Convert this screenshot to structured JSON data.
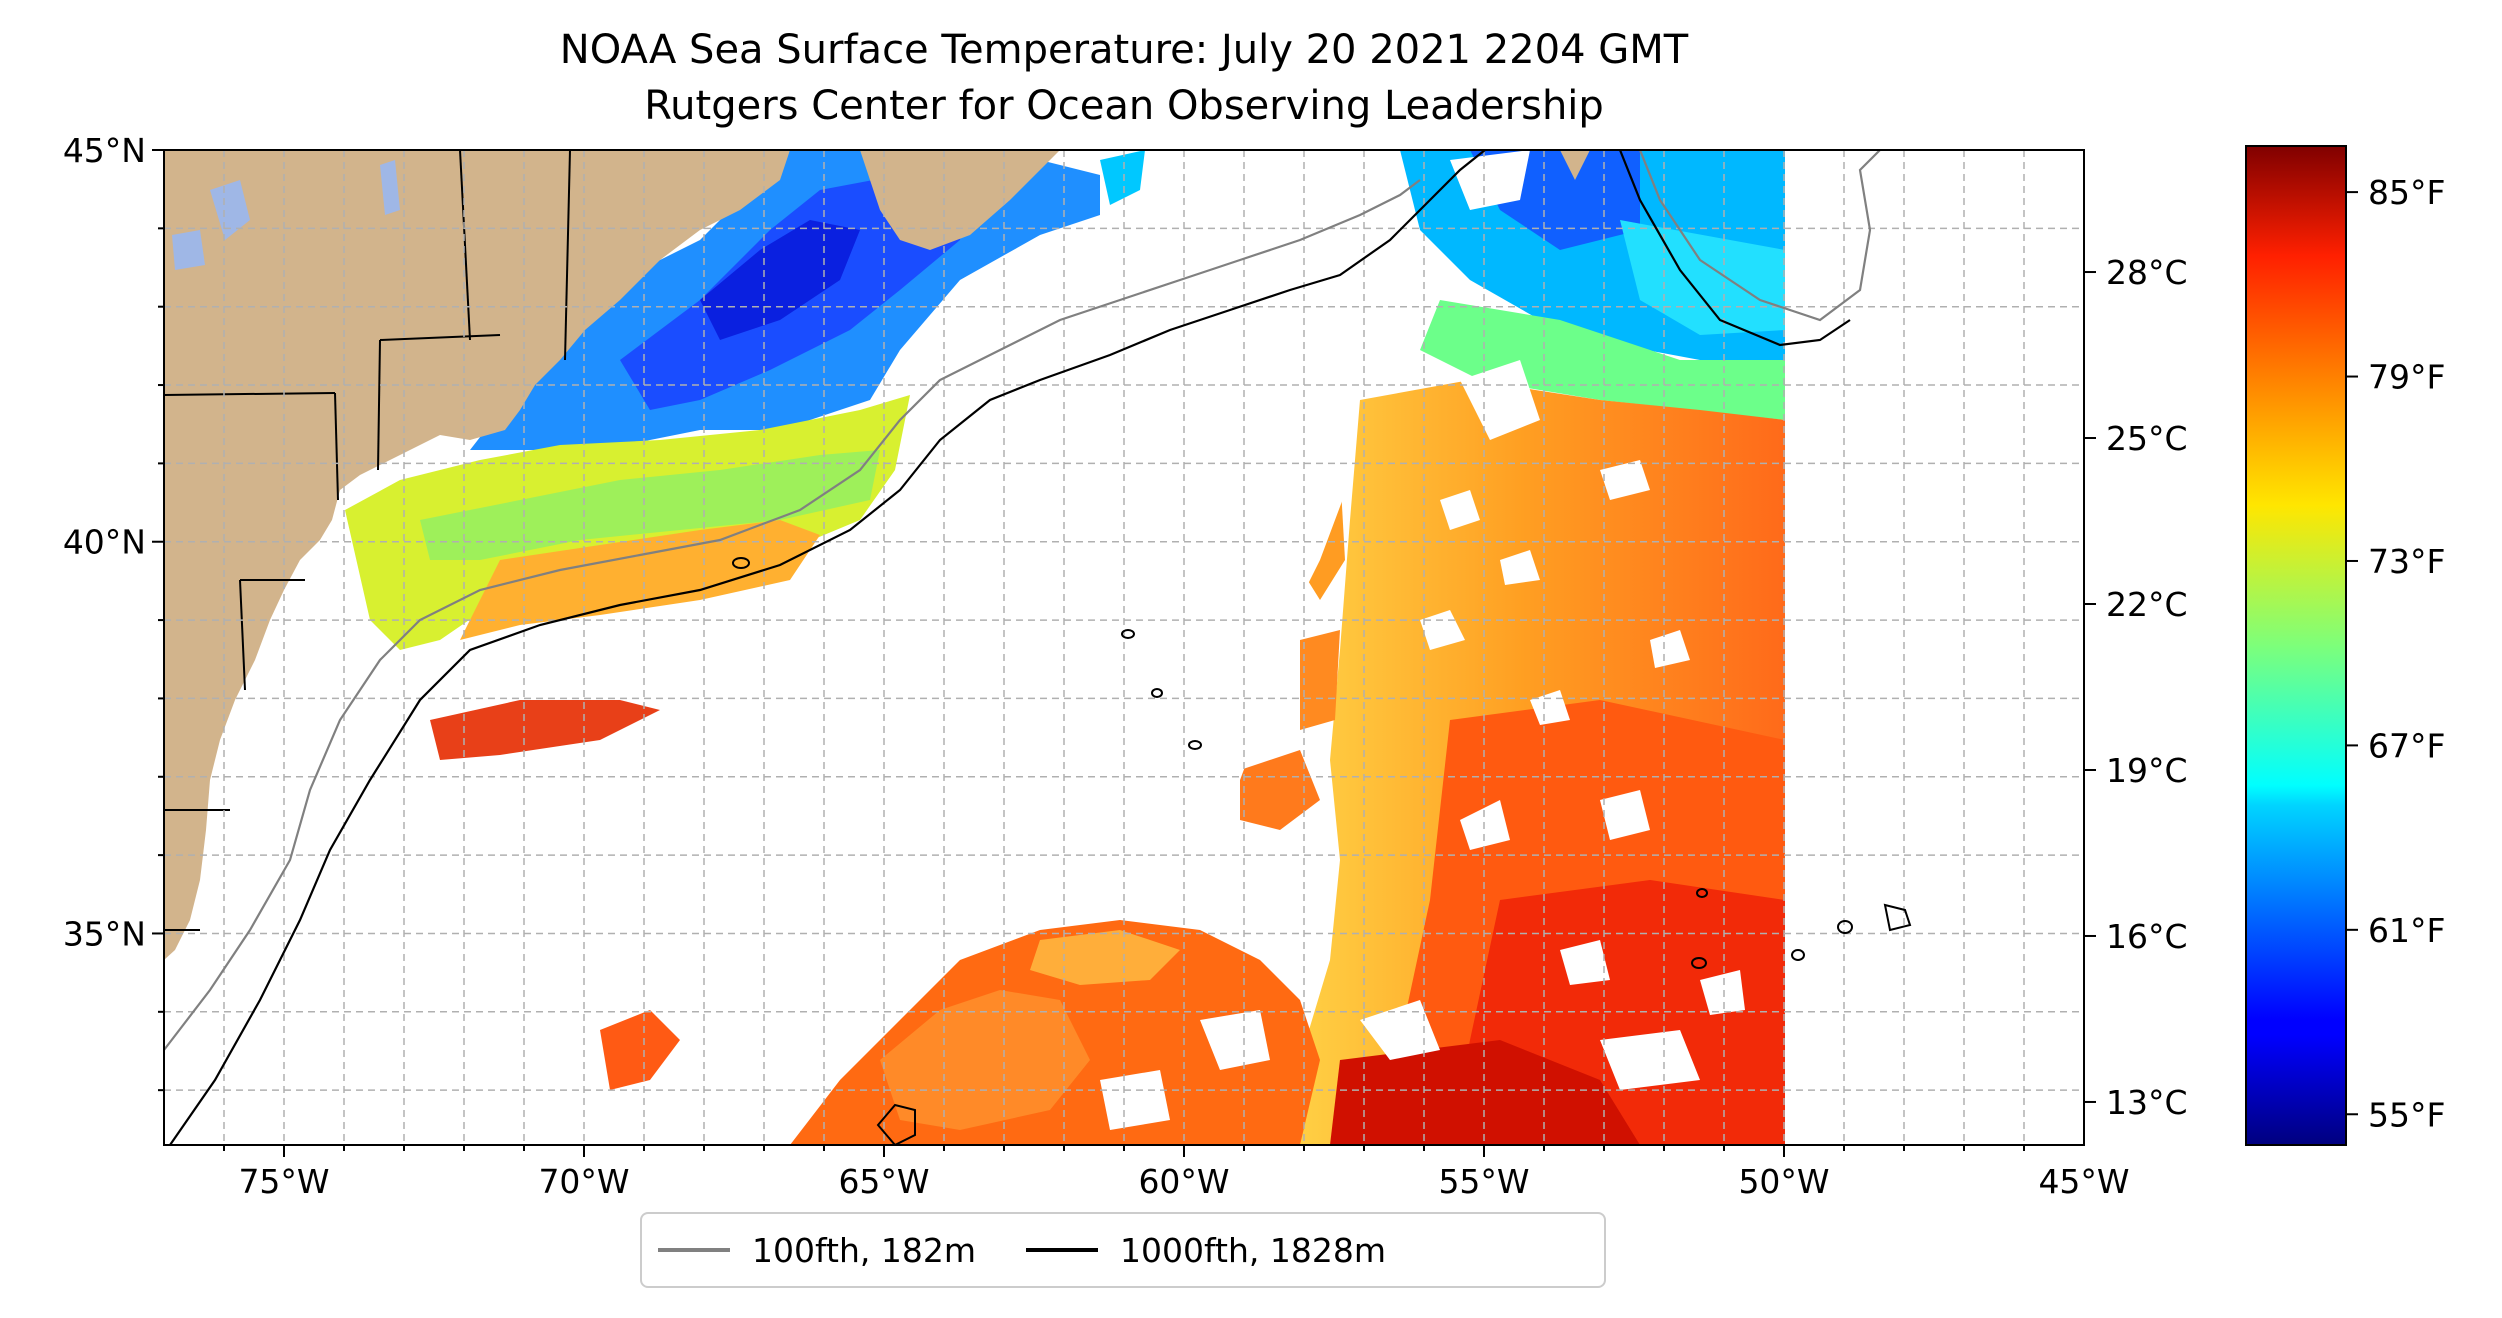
{
  "title": {
    "line1": "NOAA Sea Surface Temperature: July 20 2021 2204 GMT",
    "line2": "Rutgers Center for Ocean Observing Leadership"
  },
  "map": {
    "lon_range": [
      -77,
      -45
    ],
    "lat_range": [
      32.3,
      45
    ],
    "lon_ticks": [
      {
        "value": -75,
        "label": "75°W"
      },
      {
        "value": -70,
        "label": "70°W"
      },
      {
        "value": -65,
        "label": "65°W"
      },
      {
        "value": -60,
        "label": "60°W"
      },
      {
        "value": -55,
        "label": "55°W"
      },
      {
        "value": -50,
        "label": "50°W"
      },
      {
        "value": -45,
        "label": "45°W"
      }
    ],
    "lat_ticks": [
      {
        "value": 35,
        "label": "35°N"
      },
      {
        "value": 40,
        "label": "40°N"
      },
      {
        "value": 45,
        "label": "45°N"
      }
    ],
    "gridlines": "dashed",
    "colors": {
      "land": "#d2b48c",
      "lakes": "#9fb7e6",
      "ocean_no_data": "#ffffff",
      "isobath_100fth": "#808080",
      "isobath_1000fth": "#000000"
    }
  },
  "colorbar": {
    "colormap": "jet",
    "range_f": [
      54,
      86.5
    ],
    "fahrenheit_ticks": [
      {
        "value": 85,
        "label": "85°F"
      },
      {
        "value": 79,
        "label": "79°F"
      },
      {
        "value": 73,
        "label": "73°F"
      },
      {
        "value": 67,
        "label": "67°F"
      },
      {
        "value": 61,
        "label": "61°F"
      },
      {
        "value": 55,
        "label": "55°F"
      }
    ],
    "celsius_ticks": [
      {
        "value": 28,
        "label": "28°C"
      },
      {
        "value": 25,
        "label": "25°C"
      },
      {
        "value": 22,
        "label": "22°C"
      },
      {
        "value": 19,
        "label": "19°C"
      },
      {
        "value": 16,
        "label": "16°C"
      },
      {
        "value": 13,
        "label": "13°C"
      }
    ]
  },
  "legend": {
    "placement": "bottom-center",
    "items": [
      {
        "label": "100fth, 182m",
        "color": "#808080"
      },
      {
        "label": "1000fth, 1828m",
        "color": "#000000"
      }
    ]
  }
}
